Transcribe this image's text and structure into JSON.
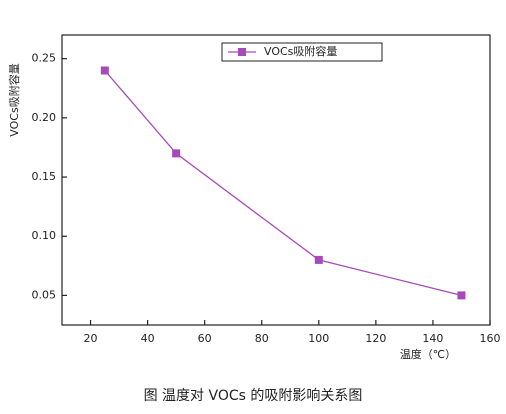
{
  "chart_data": {
    "type": "line",
    "x_label": "温度（℃）",
    "y_label": "VOCs吸附容量",
    "caption": "图   温度对 VOCs 的吸附影响关系图",
    "x": [
      25,
      50,
      100,
      150
    ],
    "series": [
      {
        "name": "VOCs吸附容量",
        "color": "#a64ab8",
        "values": [
          0.24,
          0.17,
          0.08,
          0.05
        ]
      }
    ],
    "xlim": [
      10,
      160
    ],
    "xticks": [
      20,
      40,
      60,
      80,
      100,
      120,
      140,
      160
    ],
    "ylim": [
      0.025,
      0.27
    ],
    "yticks": [
      0.05,
      {
        "value": 0.1,
        "label": "0.10"
      },
      0.15,
      {
        "value": 0.2,
        "label": "0.20"
      },
      0.25
    ],
    "legend": "top-right"
  }
}
